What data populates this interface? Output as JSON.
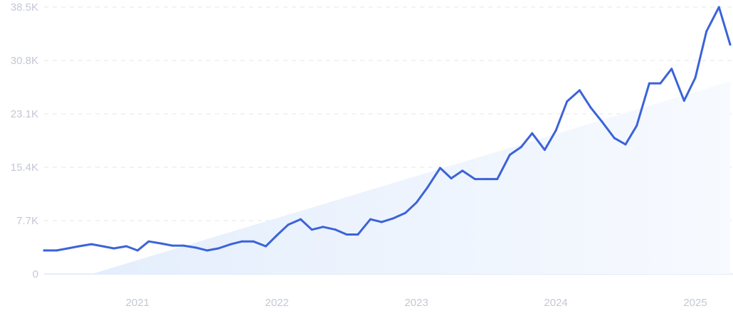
{
  "colors": {
    "line": "#3b63d9",
    "trend_fill_start": "#e4eefc",
    "trend_fill_end": "#f7faff"
  },
  "chart_data": {
    "type": "line",
    "title": "",
    "xlabel": "",
    "ylabel": "",
    "ylim": [
      0,
      38500
    ],
    "xlim": [
      2020.33,
      2025.25
    ],
    "y_ticks": [
      {
        "value": 0,
        "label": "0"
      },
      {
        "value": 7700,
        "label": "7.7K"
      },
      {
        "value": 15400,
        "label": "15.4K"
      },
      {
        "value": 23100,
        "label": "23.1K"
      },
      {
        "value": 30800,
        "label": "30.8K"
      },
      {
        "value": 38500,
        "label": "38.5K"
      }
    ],
    "x_ticks": [
      {
        "value": 2021,
        "label": "2021"
      },
      {
        "value": 2022,
        "label": "2022"
      },
      {
        "value": 2023,
        "label": "2023"
      },
      {
        "value": 2024,
        "label": "2024"
      },
      {
        "value": 2025,
        "label": "2025"
      }
    ],
    "grid": true,
    "legend": "none",
    "series": [
      {
        "values": [
          [
            2020.33,
            3400
          ],
          [
            2020.42,
            3400
          ],
          [
            2020.5,
            3700
          ],
          [
            2020.58,
            4000
          ],
          [
            2020.67,
            4300
          ],
          [
            2020.75,
            4000
          ],
          [
            2020.83,
            3700
          ],
          [
            2020.92,
            4000
          ],
          [
            2021.0,
            3400
          ],
          [
            2021.08,
            4700
          ],
          [
            2021.17,
            4400
          ],
          [
            2021.25,
            4100
          ],
          [
            2021.33,
            4100
          ],
          [
            2021.42,
            3800
          ],
          [
            2021.5,
            3400
          ],
          [
            2021.58,
            3700
          ],
          [
            2021.67,
            4300
          ],
          [
            2021.75,
            4700
          ],
          [
            2021.83,
            4700
          ],
          [
            2021.92,
            4000
          ],
          [
            2022.0,
            5600
          ],
          [
            2022.08,
            7100
          ],
          [
            2022.17,
            7900
          ],
          [
            2022.25,
            6400
          ],
          [
            2022.33,
            6800
          ],
          [
            2022.42,
            6400
          ],
          [
            2022.5,
            5700
          ],
          [
            2022.58,
            5700
          ],
          [
            2022.67,
            7900
          ],
          [
            2022.75,
            7500
          ],
          [
            2022.83,
            8000
          ],
          [
            2022.92,
            8800
          ],
          [
            2023.0,
            10300
          ],
          [
            2023.08,
            12500
          ],
          [
            2023.17,
            15300
          ],
          [
            2023.25,
            13800
          ],
          [
            2023.33,
            14900
          ],
          [
            2023.42,
            13700
          ],
          [
            2023.5,
            13700
          ],
          [
            2023.58,
            13700
          ],
          [
            2023.67,
            17200
          ],
          [
            2023.75,
            18300
          ],
          [
            2023.83,
            20300
          ],
          [
            2023.92,
            17900
          ],
          [
            2024.0,
            20700
          ],
          [
            2024.08,
            24900
          ],
          [
            2024.17,
            26500
          ],
          [
            2024.25,
            24000
          ],
          [
            2024.33,
            22000
          ],
          [
            2024.42,
            19600
          ],
          [
            2024.5,
            18700
          ],
          [
            2024.58,
            21400
          ],
          [
            2024.67,
            27500
          ],
          [
            2024.75,
            27500
          ],
          [
            2024.83,
            29600
          ],
          [
            2024.92,
            25000
          ],
          [
            2025.0,
            28300
          ],
          [
            2025.08,
            35000
          ],
          [
            2025.17,
            38500
          ],
          [
            2025.25,
            33100
          ]
        ]
      }
    ],
    "trend": {
      "start": [
        2020.67,
        0
      ],
      "end": [
        2025.25,
        27800
      ]
    }
  }
}
